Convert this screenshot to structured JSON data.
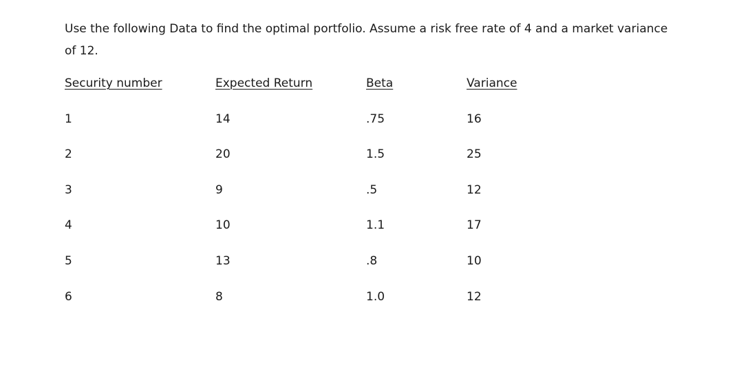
{
  "question": {
    "line1": "Use the following Data to find the optimal portfolio. Assume a risk free rate of 4 and a market variance",
    "line2": "of 12."
  },
  "table": {
    "headers": [
      "Security number",
      "Expected Return",
      "Beta",
      "Variance"
    ],
    "rows": [
      [
        "1",
        "14",
        ".75",
        "16"
      ],
      [
        "2",
        "20",
        "1.5",
        "25"
      ],
      [
        "3",
        "9",
        ".5",
        "12"
      ],
      [
        "4",
        "10",
        "1.1",
        "17"
      ],
      [
        "5",
        "13",
        ".8",
        "10"
      ],
      [
        "6",
        "8",
        "1.0",
        "12"
      ]
    ]
  }
}
